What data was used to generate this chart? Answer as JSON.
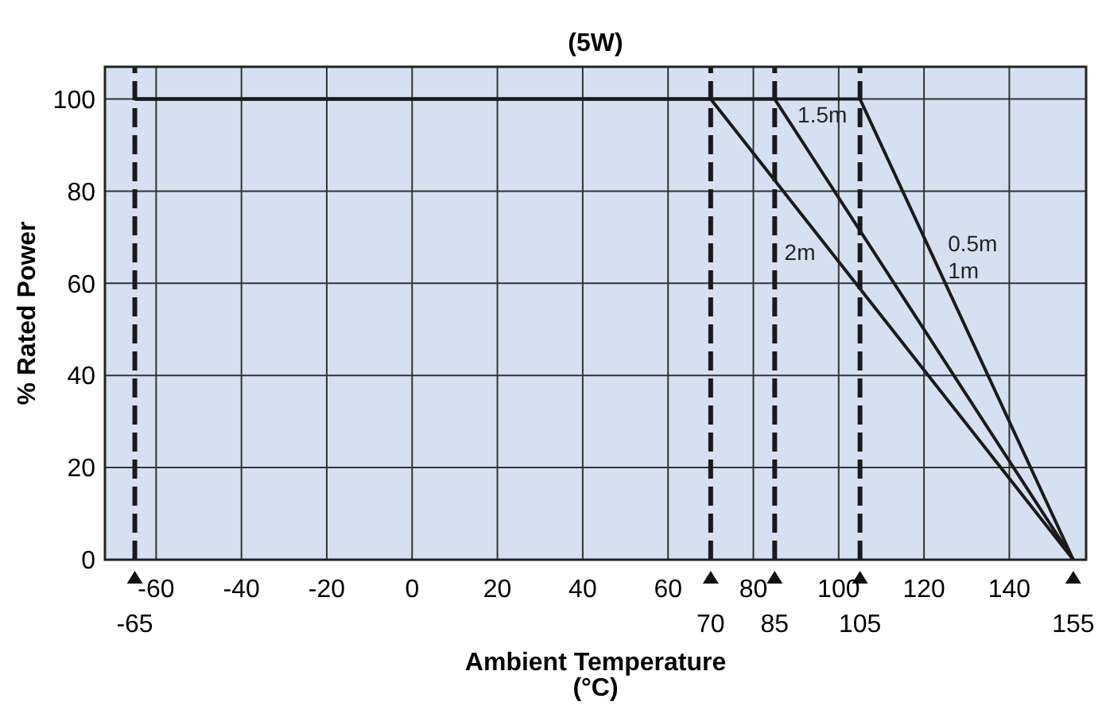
{
  "chart_data": {
    "type": "line",
    "title": "(5W)",
    "xlabel": "Ambient Temperature (°C)",
    "ylabel": "% Rated Power",
    "xlim": [
      -72,
      158
    ],
    "ylim": [
      0,
      107
    ],
    "xticks": [
      -60,
      -40,
      -20,
      0,
      20,
      40,
      60,
      80,
      100,
      120,
      140
    ],
    "yticks": [
      0,
      20,
      40,
      60,
      80,
      100
    ],
    "grid": true,
    "marker": "none",
    "line_style": "solid",
    "series": [
      {
        "name": "2m",
        "color": "#1a1a1a",
        "x": [
          -65,
          70,
          155
        ],
        "values": [
          100,
          100,
          0
        ]
      },
      {
        "name": "1.5m",
        "color": "#1a1a1a",
        "x": [
          -65,
          85,
          155
        ],
        "values": [
          100,
          100,
          0
        ]
      },
      {
        "name": "0.5m 1m",
        "color": "#1a1a1a",
        "x": [
          -65,
          105,
          155
        ],
        "values": [
          100,
          100,
          0
        ]
      }
    ],
    "ref_lines": [
      {
        "axis": "x",
        "value": -65,
        "label": "-65",
        "line_style": "dashed",
        "color": "#1a1a1a"
      },
      {
        "axis": "x",
        "value": 70,
        "label": "70",
        "line_style": "dashed",
        "color": "#1a1a1a"
      },
      {
        "axis": "x",
        "value": 85,
        "label": "85",
        "line_style": "dashed",
        "color": "#1a1a1a"
      },
      {
        "axis": "x",
        "value": 105,
        "label": "105",
        "line_style": "dashed",
        "color": "#1a1a1a"
      }
    ],
    "annotations": [
      {
        "text": "155",
        "x": 155,
        "y": 0
      }
    ]
  }
}
